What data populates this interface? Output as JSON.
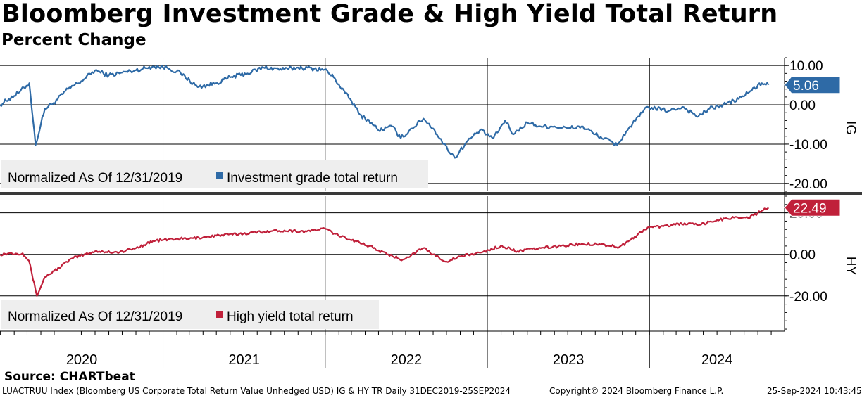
{
  "header": {
    "title": "Bloomberg Investment Grade & High Yield Total Return",
    "subtitle": "Percent Change"
  },
  "footer": {
    "source": "Source: CHARTbeat",
    "index_info": "LUACTRUU Index (Bloomberg US Corporate Total Return Value Unhedged USD) IG & HY TR  Daily 31DEC2019-25SEP2024",
    "copyright": "Copyright© 2024 Bloomberg Finance L.P.",
    "timestamp": "25-Sep-2024 10:43:45"
  },
  "colors": {
    "ig": "#2e6aa6",
    "hy": "#c0203a",
    "grid": "#000000"
  },
  "chart_data": [
    {
      "type": "line",
      "panel": "IG",
      "axis_label": "IG",
      "ylim": [
        -22,
        12
      ],
      "yticks": [
        10,
        0,
        -10,
        -20
      ],
      "tick_labels": [
        "10.00",
        "0.00",
        "-10.00",
        "-20.00"
      ],
      "last_value_label": "5.06",
      "legend": {
        "note": "Normalized As Of 12/31/2019",
        "entry": "Investment grade total return"
      },
      "series": [
        {
          "name": "Investment grade total return",
          "points": [
            [
              "2019-12-31",
              0
            ],
            [
              "2020-01-20",
              1.5
            ],
            [
              "2020-02-10",
              3
            ],
            [
              "2020-03-06",
              5.5
            ],
            [
              "2020-03-20",
              -10.2
            ],
            [
              "2020-04-10",
              -1
            ],
            [
              "2020-04-30",
              0.5
            ],
            [
              "2020-06-01",
              4
            ],
            [
              "2020-07-01",
              6
            ],
            [
              "2020-08-01",
              8.8
            ],
            [
              "2020-09-01",
              7.5
            ],
            [
              "2020-10-01",
              8.2
            ],
            [
              "2020-11-01",
              8.8
            ],
            [
              "2020-12-10",
              9.8
            ],
            [
              "2021-01-10",
              9.5
            ],
            [
              "2021-02-10",
              8
            ],
            [
              "2021-03-20",
              4.5
            ],
            [
              "2021-04-30",
              5.5
            ],
            [
              "2021-06-01",
              7
            ],
            [
              "2021-07-10",
              8
            ],
            [
              "2021-08-15",
              9.5
            ],
            [
              "2021-10-01",
              9
            ],
            [
              "2021-11-01",
              9.5
            ],
            [
              "2021-12-31",
              9
            ],
            [
              "2022-01-20",
              7
            ],
            [
              "2022-02-15",
              3
            ],
            [
              "2022-03-01",
              1
            ],
            [
              "2022-03-20",
              -2.5
            ],
            [
              "2022-04-15",
              -4.5
            ],
            [
              "2022-05-01",
              -6.5
            ],
            [
              "2022-06-01",
              -5.5
            ],
            [
              "2022-06-20",
              -8.5
            ],
            [
              "2022-07-15",
              -6
            ],
            [
              "2022-08-10",
              -3.5
            ],
            [
              "2022-09-01",
              -6
            ],
            [
              "2022-09-25",
              -10
            ],
            [
              "2022-10-20",
              -13.5
            ],
            [
              "2022-11-15",
              -9.5
            ],
            [
              "2022-12-15",
              -6.5
            ],
            [
              "2023-01-15",
              -8.5
            ],
            [
              "2023-02-10",
              -4
            ],
            [
              "2023-03-01",
              -7.5
            ],
            [
              "2023-04-01",
              -4.5
            ],
            [
              "2023-05-01",
              -5.5
            ],
            [
              "2023-06-01",
              -5.5
            ],
            [
              "2023-07-01",
              -6
            ],
            [
              "2023-08-01",
              -5.5
            ],
            [
              "2023-09-01",
              -7.5
            ],
            [
              "2023-10-20",
              -10.2
            ],
            [
              "2023-11-15",
              -6
            ],
            [
              "2023-12-28",
              -0.5
            ],
            [
              "2024-01-15",
              -1
            ],
            [
              "2024-02-15",
              -1.5
            ],
            [
              "2024-03-15",
              -0.5
            ],
            [
              "2024-04-20",
              -3
            ],
            [
              "2024-05-15",
              -1
            ],
            [
              "2024-06-15",
              0
            ],
            [
              "2024-07-20",
              1.5
            ],
            [
              "2024-08-15",
              3.5
            ],
            [
              "2024-09-10",
              5.5
            ],
            [
              "2024-09-25",
              5.06
            ]
          ]
        }
      ]
    },
    {
      "type": "line",
      "panel": "HY",
      "axis_label": "HY",
      "ylim": [
        -37,
        28
      ],
      "yticks": [
        20,
        0,
        -20
      ],
      "tick_labels": [
        "20.00",
        "0.00",
        "-20.00"
      ],
      "last_value_label": "22.49",
      "legend": {
        "note": "Normalized As Of 12/31/2019",
        "entry": "High yield total return"
      },
      "series": [
        {
          "name": "High yield total return",
          "points": [
            [
              "2019-12-31",
              0
            ],
            [
              "2020-01-20",
              0.5
            ],
            [
              "2020-02-20",
              0.5
            ],
            [
              "2020-03-05",
              -3
            ],
            [
              "2020-03-23",
              -20
            ],
            [
              "2020-04-10",
              -11
            ],
            [
              "2020-05-01",
              -8
            ],
            [
              "2020-06-10",
              -2
            ],
            [
              "2020-08-01",
              1.5
            ],
            [
              "2020-09-25",
              1
            ],
            [
              "2020-11-01",
              3
            ],
            [
              "2020-12-10",
              6.5
            ],
            [
              "2021-01-31",
              7.5
            ],
            [
              "2021-03-01",
              7.5
            ],
            [
              "2021-05-01",
              9
            ],
            [
              "2021-07-01",
              10
            ],
            [
              "2021-08-15",
              11
            ],
            [
              "2021-10-01",
              11.5
            ],
            [
              "2021-11-20",
              11
            ],
            [
              "2021-12-31",
              12.5
            ],
            [
              "2022-01-31",
              9
            ],
            [
              "2022-03-10",
              6.5
            ],
            [
              "2022-04-10",
              4
            ],
            [
              "2022-05-20",
              0
            ],
            [
              "2022-06-25",
              -2.5
            ],
            [
              "2022-08-10",
              3
            ],
            [
              "2022-09-01",
              0
            ],
            [
              "2022-10-01",
              -3.5
            ],
            [
              "2022-11-01",
              -1
            ],
            [
              "2022-12-20",
              1
            ],
            [
              "2023-01-31",
              4
            ],
            [
              "2023-03-10",
              1.5
            ],
            [
              "2023-05-01",
              3
            ],
            [
              "2023-06-15",
              4
            ],
            [
              "2023-08-01",
              5
            ],
            [
              "2023-09-10",
              5
            ],
            [
              "2023-10-25",
              3.5
            ],
            [
              "2023-11-20",
              7
            ],
            [
              "2023-12-28",
              13
            ],
            [
              "2024-02-01",
              13.5
            ],
            [
              "2024-03-20",
              15
            ],
            [
              "2024-04-20",
              14
            ],
            [
              "2024-06-01",
              16.5
            ],
            [
              "2024-07-15",
              18
            ],
            [
              "2024-08-10",
              17.5
            ],
            [
              "2024-09-25",
              22.49
            ]
          ]
        }
      ]
    }
  ],
  "x_axis": {
    "ticks": [
      "2020",
      "2021",
      "2022",
      "2023",
      "2024"
    ],
    "range": [
      "2019-12-31",
      "2024-10-31"
    ]
  }
}
